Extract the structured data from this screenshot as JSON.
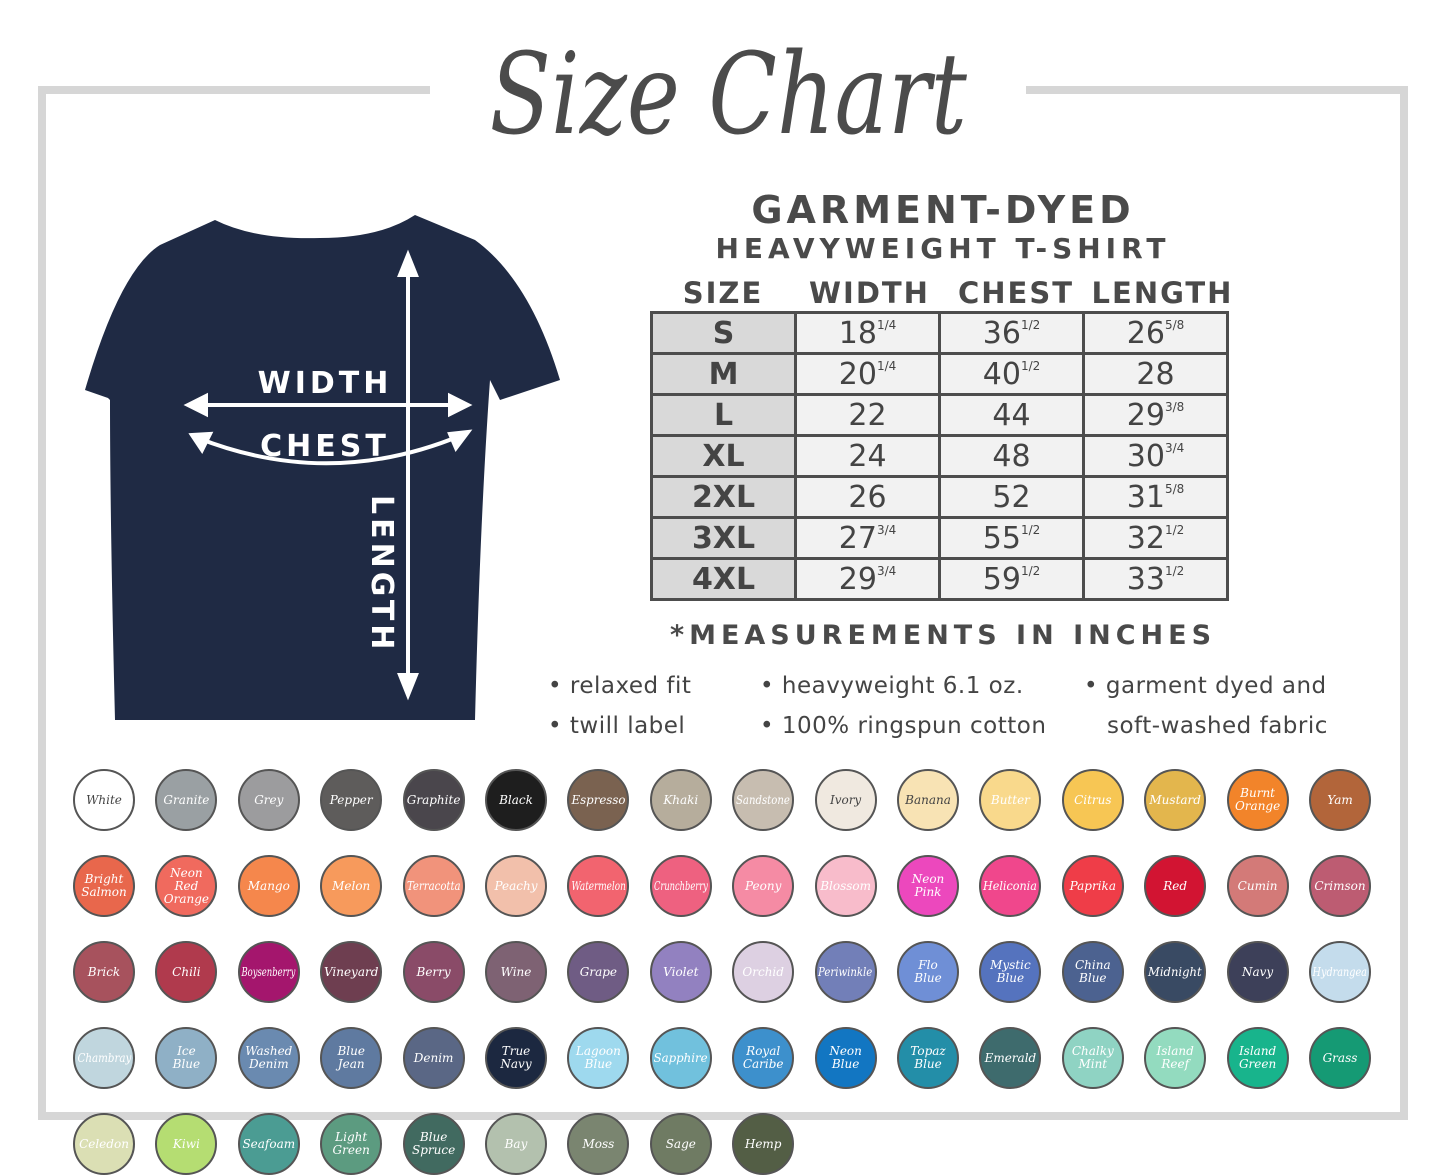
{
  "title": "Size Chart",
  "garment": {
    "line1": "GARMENT-DYED",
    "line2": "HEAVYWEIGHT T-SHIRT"
  },
  "diagram_labels": {
    "width": "WIDTH",
    "chest": "CHEST",
    "length": "LENGTH"
  },
  "table": {
    "headers": [
      "SIZE",
      "WIDTH",
      "CHEST",
      "LENGTH"
    ],
    "rows": [
      {
        "size": "S",
        "width": [
          "18",
          "1/4"
        ],
        "chest": [
          "36",
          "1/2"
        ],
        "length": [
          "26",
          "5/8"
        ]
      },
      {
        "size": "M",
        "width": [
          "20",
          "1/4"
        ],
        "chest": [
          "40",
          "1/2"
        ],
        "length": [
          "28",
          ""
        ]
      },
      {
        "size": "L",
        "width": [
          "22",
          ""
        ],
        "chest": [
          "44",
          ""
        ],
        "length": [
          "29",
          "3/8"
        ]
      },
      {
        "size": "XL",
        "width": [
          "24",
          ""
        ],
        "chest": [
          "48",
          ""
        ],
        "length": [
          "30",
          "3/4"
        ]
      },
      {
        "size": "2XL",
        "width": [
          "26",
          ""
        ],
        "chest": [
          "52",
          ""
        ],
        "length": [
          "31",
          "5/8"
        ]
      },
      {
        "size": "3XL",
        "width": [
          "27",
          "3/4"
        ],
        "chest": [
          "55",
          "1/2"
        ],
        "length": [
          "32",
          "1/2"
        ]
      },
      {
        "size": "4XL",
        "width": [
          "29",
          "3/4"
        ],
        "chest": [
          "59",
          "1/2"
        ],
        "length": [
          "33",
          "1/2"
        ]
      }
    ]
  },
  "note": "*MEASUREMENTS IN INCHES",
  "features": [
    "• relaxed fit",
    "• twill label",
    "• heavyweight 6.1 oz.",
    "• 100% ringspun cotton",
    "• garment dyed and",
    "soft-washed fabric"
  ],
  "colors": {
    "shirt": "#1f2a44",
    "frame": "#d6d6d6",
    "text": "#4a4a4a"
  },
  "swatches": [
    {
      "name": "White",
      "hex": "#ffffff",
      "dark": true
    },
    {
      "name": "Granite",
      "hex": "#9aa0a3"
    },
    {
      "name": "Grey",
      "hex": "#9c9c9e"
    },
    {
      "name": "Pepper",
      "hex": "#5e5c5b"
    },
    {
      "name": "Graphite",
      "hex": "#4a464c"
    },
    {
      "name": "Black",
      "hex": "#1e1e1e"
    },
    {
      "name": "Espresso",
      "hex": "#7a6250"
    },
    {
      "name": "Khaki",
      "hex": "#b6ad9c"
    },
    {
      "name": "Sandstone",
      "hex": "#c7bdb0"
    },
    {
      "name": "Ivory",
      "hex": "#f0e9e0",
      "dark": true
    },
    {
      "name": "Banana",
      "hex": "#f8e3b4",
      "dark": true
    },
    {
      "name": "Butter",
      "hex": "#f9d98c"
    },
    {
      "name": "Citrus",
      "hex": "#f7c654"
    },
    {
      "name": "Mustard",
      "hex": "#e3b64d"
    },
    {
      "name": "Burnt Orange",
      "hex": "#f2842a"
    },
    {
      "name": "Yam",
      "hex": "#b2653a"
    },
    {
      "name": "Bright Salmon",
      "hex": "#e8674c"
    },
    {
      "name": "Neon Red Orange",
      "hex": "#f06a5e"
    },
    {
      "name": "Mango",
      "hex": "#f5874c"
    },
    {
      "name": "Melon",
      "hex": "#f79a5c"
    },
    {
      "name": "Terracotta",
      "hex": "#f1937b"
    },
    {
      "name": "Peachy",
      "hex": "#f2c0ab"
    },
    {
      "name": "Watermelon",
      "hex": "#f2646f"
    },
    {
      "name": "Crunchberry",
      "hex": "#ee6180"
    },
    {
      "name": "Peony",
      "hex": "#f58ba4"
    },
    {
      "name": "Blossom",
      "hex": "#f8bccb"
    },
    {
      "name": "Neon Pink",
      "hex": "#ec48bd"
    },
    {
      "name": "Heliconia",
      "hex": "#f0478c"
    },
    {
      "name": "Paprika",
      "hex": "#ef3d48"
    },
    {
      "name": "Red",
      "hex": "#d21432"
    },
    {
      "name": "Cumin",
      "hex": "#d37a78"
    },
    {
      "name": "Crimson",
      "hex": "#bd5c72"
    },
    {
      "name": "Brick",
      "hex": "#a7525d"
    },
    {
      "name": "Chili",
      "hex": "#b03a4d"
    },
    {
      "name": "Boysenberry",
      "hex": "#a4166d"
    },
    {
      "name": "Vineyard",
      "hex": "#6e3e50"
    },
    {
      "name": "Berry",
      "hex": "#8a4b68"
    },
    {
      "name": "Wine",
      "hex": "#7e6273"
    },
    {
      "name": "Grape",
      "hex": "#6f5c84"
    },
    {
      "name": "Violet",
      "hex": "#9281c0"
    },
    {
      "name": "Orchid",
      "hex": "#ddd0e2"
    },
    {
      "name": "Periwinkle",
      "hex": "#727fb8"
    },
    {
      "name": "Flo Blue",
      "hex": "#6f8fd6"
    },
    {
      "name": "Mystic Blue",
      "hex": "#5573be"
    },
    {
      "name": "China Blue",
      "hex": "#4c6290"
    },
    {
      "name": "Midnight",
      "hex": "#394a63"
    },
    {
      "name": "Navy",
      "hex": "#3d4059"
    },
    {
      "name": "Hydrangea",
      "hex": "#c4dcec"
    },
    {
      "name": "Chambray",
      "hex": "#c0d6de"
    },
    {
      "name": "Ice Blue",
      "hex": "#8fb0c6"
    },
    {
      "name": "Washed Denim",
      "hex": "#6a8ab0"
    },
    {
      "name": "Blue Jean",
      "hex": "#5f7aa0"
    },
    {
      "name": "Denim",
      "hex": "#5a6785"
    },
    {
      "name": "True Navy",
      "hex": "#1c2840"
    },
    {
      "name": "Lagoon Blue",
      "hex": "#9ed9ee"
    },
    {
      "name": "Sapphire",
      "hex": "#71c1dd"
    },
    {
      "name": "Royal Caribe",
      "hex": "#3d90cc"
    },
    {
      "name": "Neon Blue",
      "hex": "#1276c2"
    },
    {
      "name": "Topaz Blue",
      "hex": "#238ea8"
    },
    {
      "name": "Emerald",
      "hex": "#3e6b6d"
    },
    {
      "name": "Chalky Mint",
      "hex": "#8fd3c3"
    },
    {
      "name": "Island Reef",
      "hex": "#93dbbf"
    },
    {
      "name": "Island Green",
      "hex": "#18b48c"
    },
    {
      "name": "Grass",
      "hex": "#159a74"
    },
    {
      "name": "Celedon",
      "hex": "#dbdfb4"
    },
    {
      "name": "Kiwi",
      "hex": "#b5dd72"
    },
    {
      "name": "Seafoam",
      "hex": "#4b9c93"
    },
    {
      "name": "Light Green",
      "hex": "#5c9b80"
    },
    {
      "name": "Blue Spruce",
      "hex": "#416a60"
    },
    {
      "name": "Bay",
      "hex": "#b3c1ae"
    },
    {
      "name": "Moss",
      "hex": "#7a8570"
    },
    {
      "name": "Sage",
      "hex": "#6f7b63"
    },
    {
      "name": "Hemp",
      "hex": "#535e45"
    }
  ]
}
